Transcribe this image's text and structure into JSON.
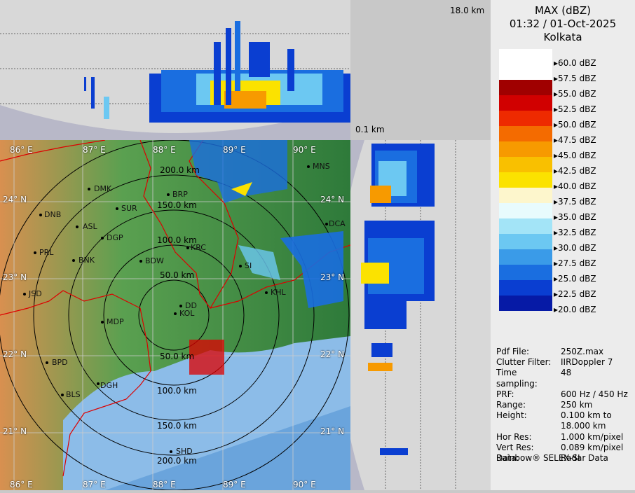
{
  "product": {
    "title": "MAX (dBZ)",
    "datetime": "01:32 / 01-Oct-2025",
    "site": "Kolkata"
  },
  "heights": {
    "top": "18.0 km",
    "bottom": "0.1 km"
  },
  "legend": [
    {
      "label": "60.0 dBZ",
      "color": "#ffffff"
    },
    {
      "label": "57.5 dBZ",
      "color": "#ffffff"
    },
    {
      "label": "55.0 dBZ",
      "color": "#a00000"
    },
    {
      "label": "52.5 dBZ",
      "color": "#d10000"
    },
    {
      "label": "50.0 dBZ",
      "color": "#ee2a00"
    },
    {
      "label": "47.5 dBZ",
      "color": "#f46b00"
    },
    {
      "label": "45.0 dBZ",
      "color": "#f79a00"
    },
    {
      "label": "42.5 dBZ",
      "color": "#f9c000"
    },
    {
      "label": "40.0 dBZ",
      "color": "#fbe200"
    },
    {
      "label": "37.5 dBZ",
      "color": "#fdf6cc"
    },
    {
      "label": "35.0 dBZ",
      "color": "#e8fbfd"
    },
    {
      "label": "32.5 dBZ",
      "color": "#a3e4f7"
    },
    {
      "label": "30.0 dBZ",
      "color": "#6cc8f2"
    },
    {
      "label": "27.5 dBZ",
      "color": "#3a9be8"
    },
    {
      "label": "25.0 dBZ",
      "color": "#1a6ee0"
    },
    {
      "label": "22.5 dBZ",
      "color": "#0a3ed1"
    },
    {
      "label": "20.0 dBZ",
      "color": "#061aa6"
    }
  ],
  "info": [
    {
      "key": "Pdf File:",
      "value": "250Z.max"
    },
    {
      "key": "Clutter Filter:",
      "value": "IIRDoppler 7"
    },
    {
      "key": "Time sampling:",
      "value": "48"
    },
    {
      "key": "PRF:",
      "value": "600 Hz / 450 Hz"
    },
    {
      "key": "Range:",
      "value": "250 km"
    },
    {
      "key": "Height:",
      "value": "0.100 km to"
    },
    {
      "key": "",
      "value": "18.000 km"
    },
    {
      "key": "Hor Res:",
      "value": "1.000 km/pixel"
    },
    {
      "key": "Vert Res:",
      "value": "0.089 km/pixel"
    },
    {
      "key": "Data:",
      "value": "Radar Data"
    }
  ],
  "vendor": "Rainbow® SELEX-SI",
  "map": {
    "lon_top": [
      "86° E",
      "87° E",
      "88° E",
      "89° E",
      "90° E"
    ],
    "lon_bottom": [
      "86° E",
      "87° E",
      "88° E",
      "89° E",
      "90° E"
    ],
    "lat_left": [
      "24° N",
      "23° N",
      "22° N",
      "21° N"
    ],
    "lat_right": [
      "24° N",
      "23° N",
      "22° N",
      "21° N"
    ],
    "rings": [
      "50.0 km",
      "100.0 km",
      "150.0 km",
      "200.0 km",
      "50.0 km",
      "100.0 km",
      "150.0 km",
      "200.0 km"
    ],
    "cities": [
      "MNS",
      "DMK",
      "BRP",
      "SUR",
      "DNB",
      "ASL",
      "DGP",
      "DCA",
      "KRC",
      "PRL",
      "BNK",
      "BDW",
      "SI",
      "KHL",
      "JSD",
      "DD",
      "KOL",
      "MDP",
      "BPD",
      "DGH",
      "BLS",
      "SHD"
    ]
  }
}
